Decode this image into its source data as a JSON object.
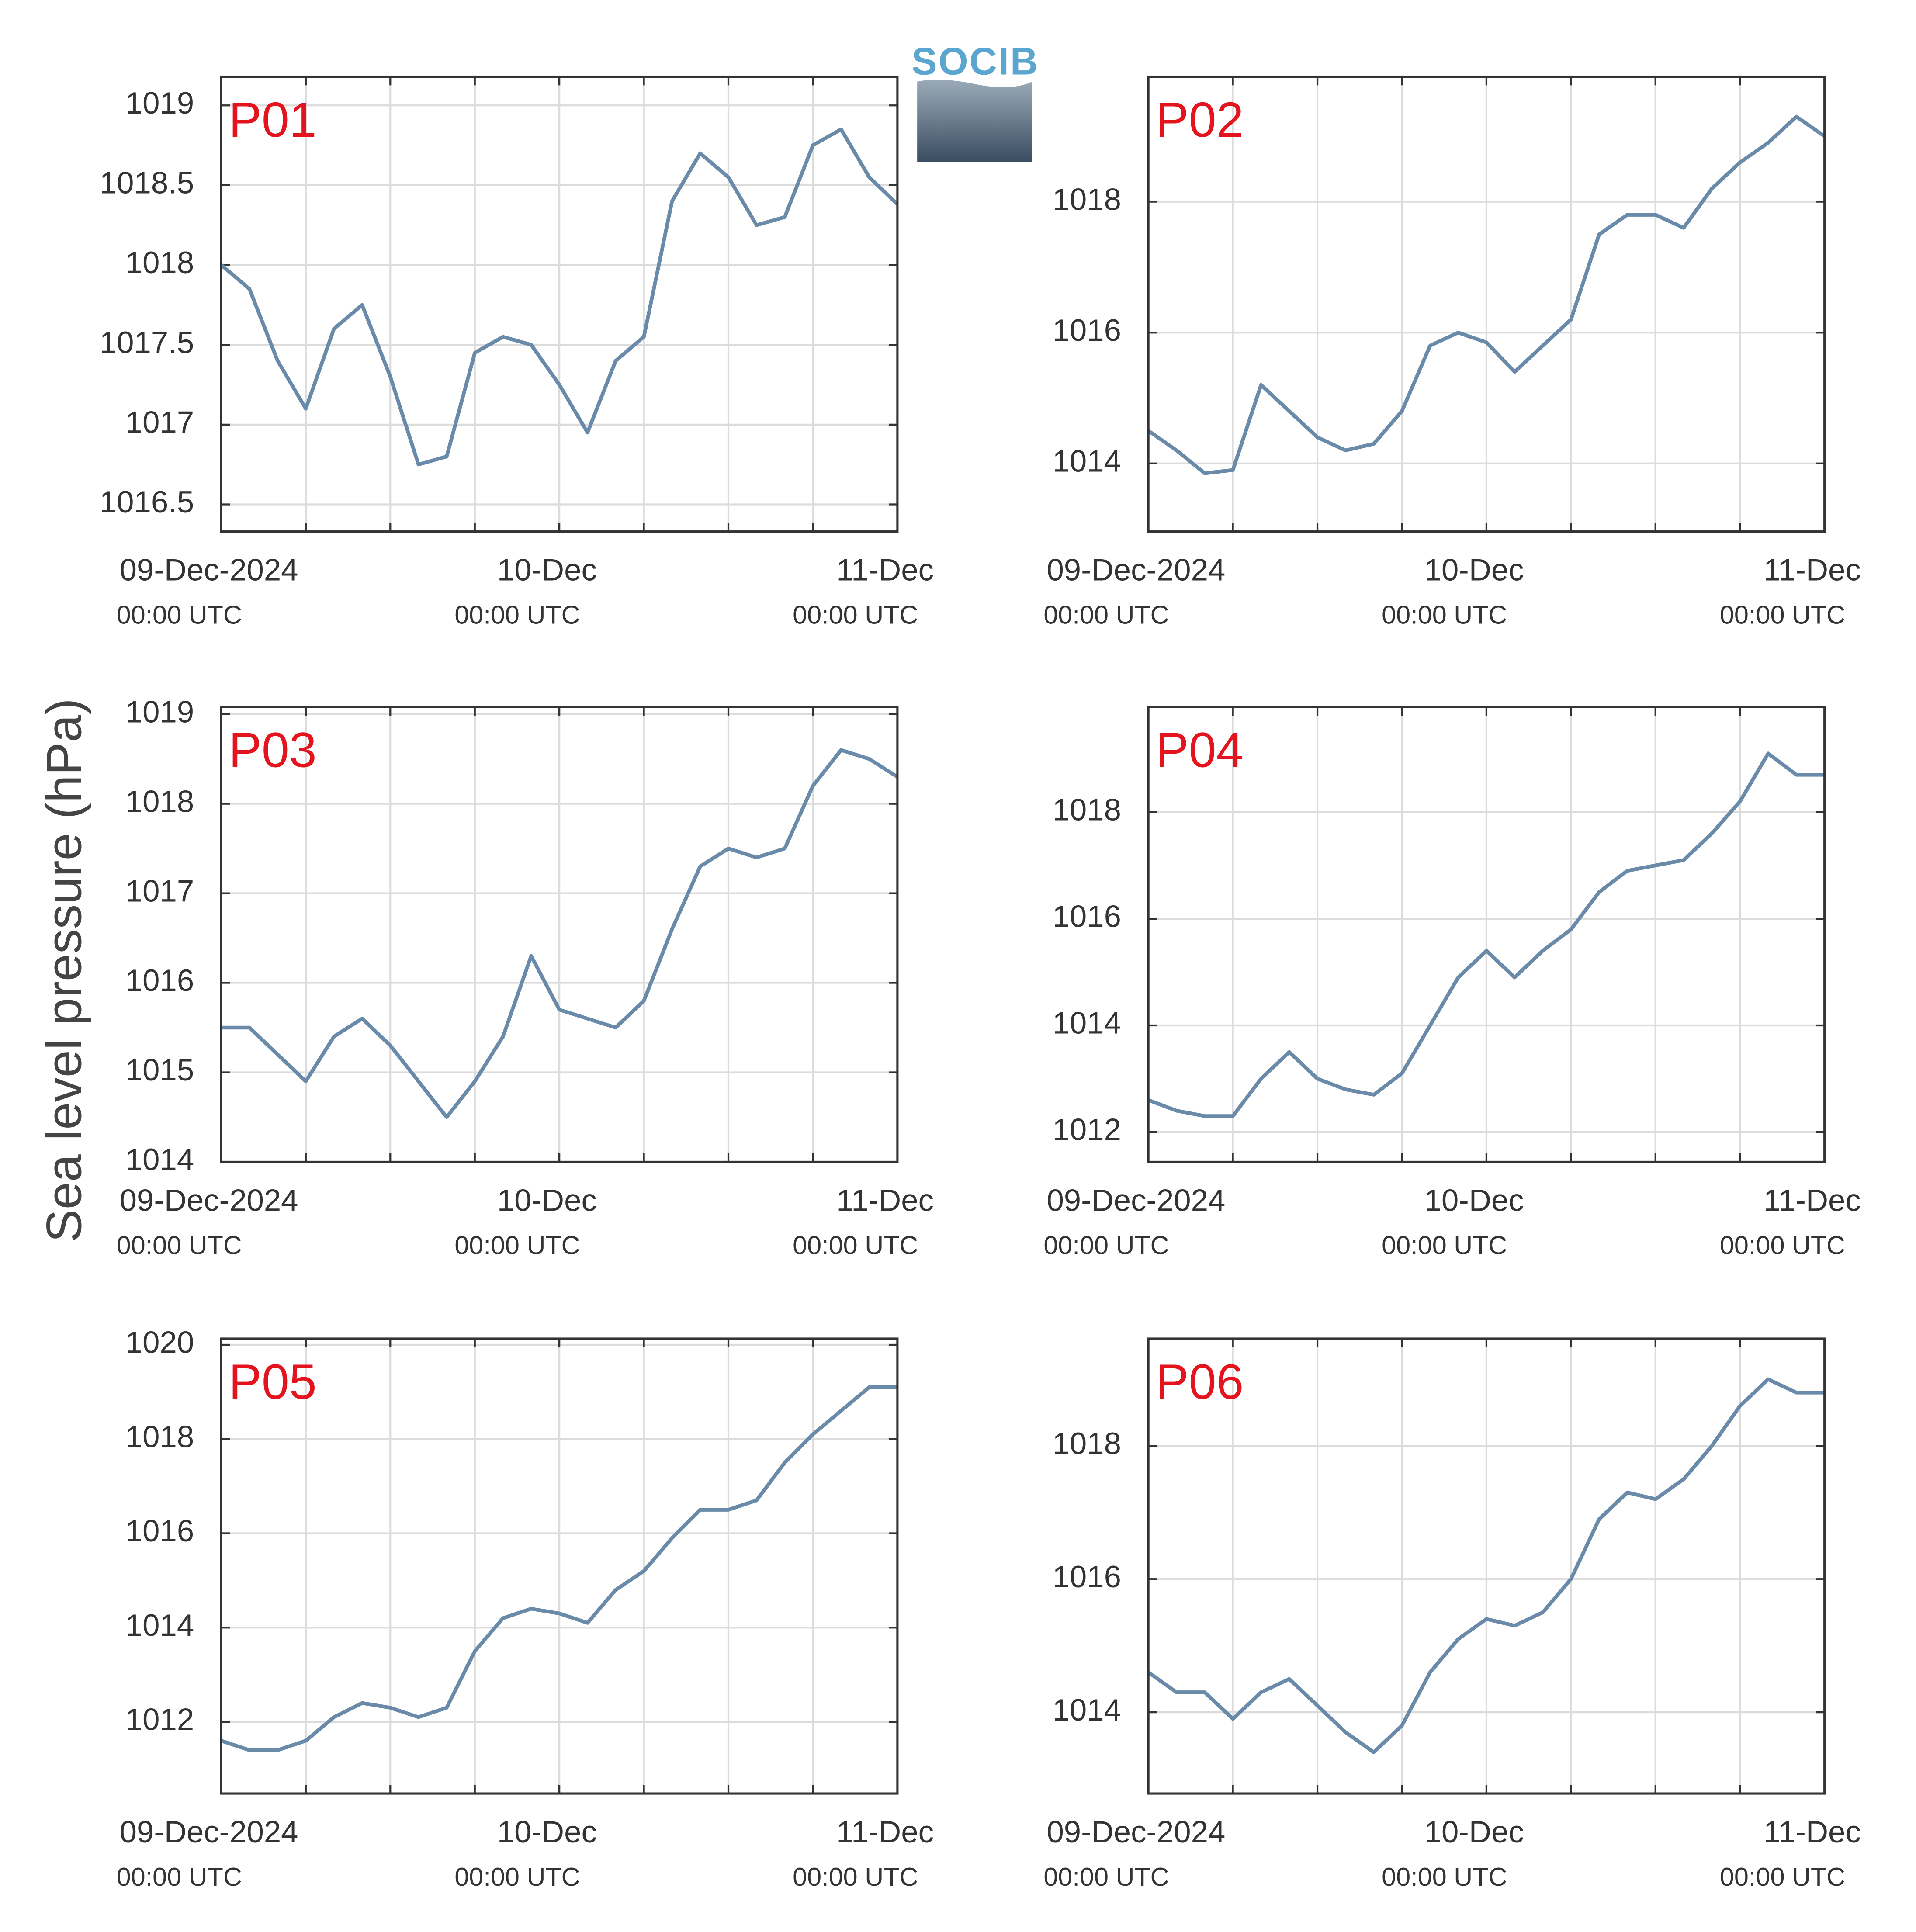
{
  "ylabel": "Sea level pressure (hPa)",
  "logo": "SOCIB",
  "chart_data": [
    {
      "type": "line",
      "title": "P01",
      "color": "#6a8aaa",
      "grid": true,
      "x": [
        0,
        2,
        4,
        6,
        8,
        10,
        12,
        14,
        16,
        18,
        20,
        22,
        24,
        26,
        28,
        30,
        32,
        34,
        36,
        38,
        40,
        42,
        44,
        46,
        48
      ],
      "values": [
        1018.0,
        1017.85,
        1017.4,
        1017.1,
        1017.6,
        1017.75,
        1017.3,
        1016.75,
        1016.8,
        1017.45,
        1017.55,
        1017.5,
        1017.25,
        1016.95,
        1017.4,
        1017.55,
        1018.4,
        1018.7,
        1018.55,
        1018.25,
        1018.3,
        1018.75,
        1018.85,
        1018.55,
        1018.38
      ],
      "xlim": [
        0,
        48
      ],
      "xticks": [
        {
          "value": 0,
          "label": "09-Dec-2024",
          "sublabel": "00:00 UTC"
        },
        {
          "value": 6,
          "label": null
        },
        {
          "value": 12,
          "label": null
        },
        {
          "value": 18,
          "label": null
        },
        {
          "value": 24,
          "label": "10-Dec",
          "sublabel": "00:00 UTC"
        },
        {
          "value": 30,
          "label": null
        },
        {
          "value": 36,
          "label": null
        },
        {
          "value": 42,
          "label": null
        },
        {
          "value": 48,
          "label": "11-Dec",
          "sublabel": "00:00 UTC"
        }
      ],
      "ylim": [
        1016.33,
        1019.18
      ],
      "yticks": [
        1016.5,
        1017,
        1017.5,
        1018,
        1018.5,
        1019
      ]
    },
    {
      "type": "line",
      "title": "P02",
      "color": "#6a8aaa",
      "grid": true,
      "x": [
        0,
        2,
        4,
        6,
        8,
        10,
        12,
        14,
        16,
        18,
        20,
        22,
        24,
        26,
        28,
        30,
        32,
        34,
        36,
        38,
        40,
        42,
        44,
        46,
        48
      ],
      "values": [
        1014.5,
        1014.2,
        1013.85,
        1013.9,
        1015.2,
        1014.8,
        1014.4,
        1014.2,
        1014.3,
        1014.8,
        1015.8,
        1016.0,
        1015.85,
        1015.4,
        1015.8,
        1016.2,
        1017.5,
        1017.8,
        1017.8,
        1017.6,
        1018.2,
        1018.6,
        1018.9,
        1019.3,
        1019.0
      ],
      "xlim": [
        0,
        48
      ],
      "xticks": [
        {
          "value": 0,
          "label": "09-Dec-2024",
          "sublabel": "00:00 UTC"
        },
        {
          "value": 6,
          "label": null
        },
        {
          "value": 12,
          "label": null
        },
        {
          "value": 18,
          "label": null
        },
        {
          "value": 24,
          "label": "10-Dec",
          "sublabel": "00:00 UTC"
        },
        {
          "value": 30,
          "label": null
        },
        {
          "value": 36,
          "label": null
        },
        {
          "value": 42,
          "label": null
        },
        {
          "value": 48,
          "label": "11-Dec",
          "sublabel": "00:00 UTC"
        }
      ],
      "ylim": [
        1012.96,
        1019.91
      ],
      "yticks": [
        1014,
        1016,
        1018
      ]
    },
    {
      "type": "line",
      "title": "P03",
      "color": "#6a8aaa",
      "grid": true,
      "x": [
        0,
        2,
        4,
        6,
        8,
        10,
        12,
        14,
        16,
        18,
        20,
        22,
        24,
        26,
        28,
        30,
        32,
        34,
        36,
        38,
        40,
        42,
        44,
        46,
        48
      ],
      "values": [
        1015.5,
        1015.5,
        1015.2,
        1014.9,
        1015.4,
        1015.6,
        1015.3,
        1014.9,
        1014.5,
        1014.9,
        1015.4,
        1016.3,
        1015.7,
        1015.6,
        1015.5,
        1015.8,
        1016.6,
        1017.3,
        1017.5,
        1017.4,
        1017.5,
        1018.2,
        1018.6,
        1018.5,
        1018.3
      ],
      "xlim": [
        0,
        48
      ],
      "xticks": [
        {
          "value": 0,
          "label": "09-Dec-2024",
          "sublabel": "00:00 UTC"
        },
        {
          "value": 6,
          "label": null
        },
        {
          "value": 12,
          "label": null
        },
        {
          "value": 18,
          "label": null
        },
        {
          "value": 24,
          "label": "10-Dec",
          "sublabel": "00:00 UTC"
        },
        {
          "value": 30,
          "label": null
        },
        {
          "value": 36,
          "label": null
        },
        {
          "value": 42,
          "label": null
        },
        {
          "value": 48,
          "label": "11-Dec",
          "sublabel": "00:00 UTC"
        }
      ],
      "ylim": [
        1014,
        1019.08
      ],
      "yticks": [
        1014,
        1015,
        1016,
        1017,
        1018,
        1019
      ]
    },
    {
      "type": "line",
      "title": "P04",
      "color": "#6a8aaa",
      "grid": true,
      "x": [
        0,
        2,
        4,
        6,
        8,
        10,
        12,
        14,
        16,
        18,
        20,
        22,
        24,
        26,
        28,
        30,
        32,
        34,
        36,
        38,
        40,
        42,
        44,
        46,
        48
      ],
      "values": [
        1012.6,
        1012.4,
        1012.3,
        1012.3,
        1013.0,
        1013.5,
        1013.0,
        1012.8,
        1012.7,
        1013.1,
        1014.0,
        1014.9,
        1015.4,
        1014.9,
        1015.4,
        1015.8,
        1016.5,
        1016.9,
        1017.0,
        1017.1,
        1017.6,
        1018.2,
        1019.1,
        1018.7,
        1018.7
      ],
      "xlim": [
        0,
        48
      ],
      "xticks": [
        {
          "value": 0,
          "label": "09-Dec-2024",
          "sublabel": "00:00 UTC"
        },
        {
          "value": 6,
          "label": null
        },
        {
          "value": 12,
          "label": null
        },
        {
          "value": 18,
          "label": null
        },
        {
          "value": 24,
          "label": "10-Dec",
          "sublabel": "00:00 UTC"
        },
        {
          "value": 30,
          "label": null
        },
        {
          "value": 36,
          "label": null
        },
        {
          "value": 42,
          "label": null
        },
        {
          "value": 48,
          "label": "11-Dec",
          "sublabel": "00:00 UTC"
        }
      ],
      "ylim": [
        1011.44,
        1019.97
      ],
      "yticks": [
        1012,
        1014,
        1016,
        1018
      ]
    },
    {
      "type": "line",
      "title": "P05",
      "color": "#6a8aaa",
      "grid": true,
      "x": [
        0,
        2,
        4,
        6,
        8,
        10,
        12,
        14,
        16,
        18,
        20,
        22,
        24,
        26,
        28,
        30,
        32,
        34,
        36,
        38,
        40,
        42,
        44,
        46,
        48
      ],
      "values": [
        1011.6,
        1011.4,
        1011.4,
        1011.6,
        1012.1,
        1012.4,
        1012.3,
        1012.1,
        1012.3,
        1013.5,
        1014.2,
        1014.4,
        1014.3,
        1014.1,
        1014.8,
        1015.2,
        1015.9,
        1016.5,
        1016.5,
        1016.7,
        1017.5,
        1018.1,
        1018.6,
        1019.1,
        1019.1
      ],
      "xlim": [
        0,
        48
      ],
      "xticks": [
        {
          "value": 0,
          "label": "09-Dec-2024",
          "sublabel": "00:00 UTC"
        },
        {
          "value": 6,
          "label": null
        },
        {
          "value": 12,
          "label": null
        },
        {
          "value": 18,
          "label": null
        },
        {
          "value": 24,
          "label": "10-Dec",
          "sublabel": "00:00 UTC"
        },
        {
          "value": 30,
          "label": null
        },
        {
          "value": 36,
          "label": null
        },
        {
          "value": 42,
          "label": null
        },
        {
          "value": 48,
          "label": "11-Dec",
          "sublabel": "00:00 UTC"
        }
      ],
      "ylim": [
        1010.48,
        1020.13
      ],
      "yticks": [
        1012,
        1014,
        1016,
        1018,
        1020
      ]
    },
    {
      "type": "line",
      "title": "P06",
      "color": "#6a8aaa",
      "grid": true,
      "x": [
        0,
        2,
        4,
        6,
        8,
        10,
        12,
        14,
        16,
        18,
        20,
        22,
        24,
        26,
        28,
        30,
        32,
        34,
        36,
        38,
        40,
        42,
        44,
        46,
        48
      ],
      "values": [
        1014.6,
        1014.3,
        1014.3,
        1013.9,
        1014.3,
        1014.5,
        1014.1,
        1013.7,
        1013.4,
        1013.8,
        1014.6,
        1015.1,
        1015.4,
        1015.3,
        1015.5,
        1016.0,
        1016.9,
        1017.3,
        1017.2,
        1017.5,
        1018.0,
        1018.6,
        1019.0,
        1018.8,
        1018.8
      ],
      "xlim": [
        0,
        48
      ],
      "xticks": [
        {
          "value": 0,
          "label": "09-Dec-2024",
          "sublabel": "00:00 UTC"
        },
        {
          "value": 6,
          "label": null
        },
        {
          "value": 12,
          "label": null
        },
        {
          "value": 18,
          "label": null
        },
        {
          "value": 24,
          "label": "10-Dec",
          "sublabel": "00:00 UTC"
        },
        {
          "value": 30,
          "label": null
        },
        {
          "value": 36,
          "label": null
        },
        {
          "value": 42,
          "label": null
        },
        {
          "value": 48,
          "label": "11-Dec",
          "sublabel": "00:00 UTC"
        }
      ],
      "ylim": [
        1012.78,
        1019.61
      ],
      "yticks": [
        1014,
        1016,
        1018
      ]
    }
  ]
}
